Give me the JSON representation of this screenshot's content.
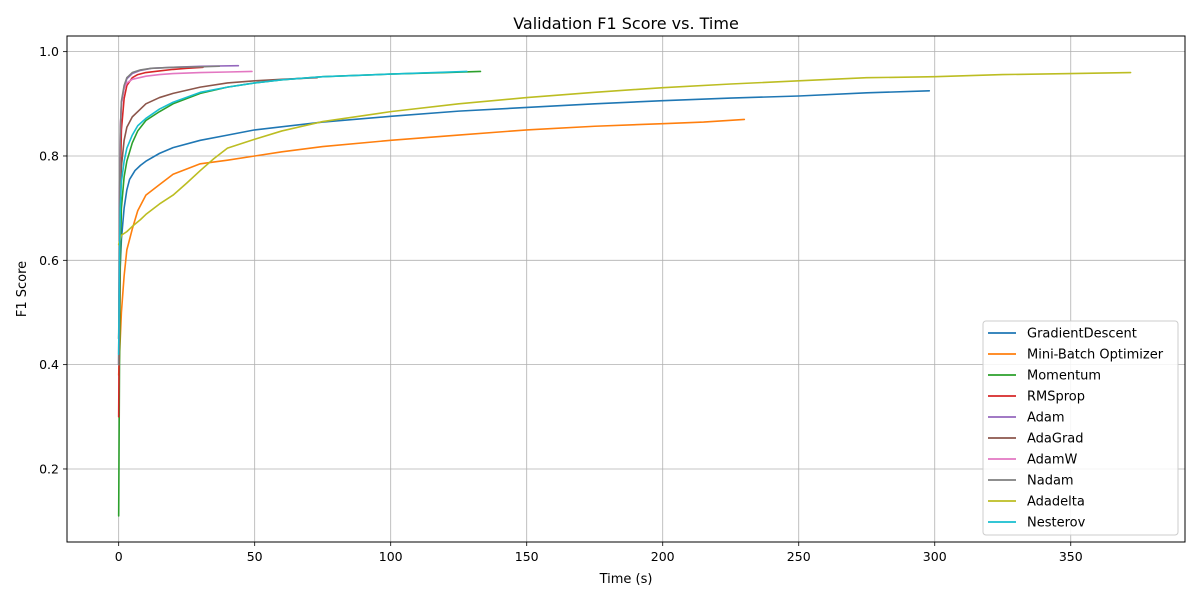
{
  "chart_data": {
    "type": "line",
    "title": "Validation F1 Score vs. Time",
    "xlabel": "Time (s)",
    "ylabel": "F1 Score",
    "xlim": [
      -19,
      392
    ],
    "ylim": [
      0.06,
      1.03
    ],
    "xticks": [
      0,
      50,
      100,
      150,
      200,
      250,
      300,
      350
    ],
    "yticks": [
      0.2,
      0.4,
      0.6,
      0.8,
      1.0
    ],
    "ytick_labels": [
      "0.2",
      "0.4",
      "0.6",
      "0.8",
      "1.0"
    ],
    "grid": true,
    "legend_position": "lower-right",
    "series": [
      {
        "name": "GradientDescent",
        "color": "#1f77b4",
        "points": [
          [
            0,
            0.45
          ],
          [
            0.5,
            0.58
          ],
          [
            1,
            0.64
          ],
          [
            2,
            0.7
          ],
          [
            3,
            0.735
          ],
          [
            4,
            0.755
          ],
          [
            6,
            0.772
          ],
          [
            8,
            0.782
          ],
          [
            10,
            0.79
          ],
          [
            15,
            0.805
          ],
          [
            20,
            0.816
          ],
          [
            30,
            0.83
          ],
          [
            40,
            0.84
          ],
          [
            50,
            0.85
          ],
          [
            75,
            0.865
          ],
          [
            100,
            0.876
          ],
          [
            125,
            0.886
          ],
          [
            150,
            0.893
          ],
          [
            175,
            0.9
          ],
          [
            200,
            0.906
          ],
          [
            225,
            0.911
          ],
          [
            250,
            0.915
          ],
          [
            275,
            0.921
          ],
          [
            298,
            0.925
          ]
        ]
      },
      {
        "name": "Mini-Batch Optimizer",
        "color": "#ff7f0e",
        "points": [
          [
            0,
            0.38
          ],
          [
            1,
            0.5
          ],
          [
            2,
            0.57
          ],
          [
            3,
            0.62
          ],
          [
            5,
            0.66
          ],
          [
            7,
            0.695
          ],
          [
            10,
            0.725
          ],
          [
            15,
            0.745
          ],
          [
            20,
            0.765
          ],
          [
            25,
            0.775
          ],
          [
            30,
            0.785
          ],
          [
            40,
            0.792
          ],
          [
            50,
            0.8
          ],
          [
            60,
            0.808
          ],
          [
            75,
            0.818
          ],
          [
            100,
            0.83
          ],
          [
            125,
            0.84
          ],
          [
            150,
            0.85
          ],
          [
            175,
            0.857
          ],
          [
            200,
            0.862
          ],
          [
            215,
            0.865
          ],
          [
            230,
            0.87
          ]
        ]
      },
      {
        "name": "Momentum",
        "color": "#2ca02c",
        "points": [
          [
            0,
            0.11
          ],
          [
            0.3,
            0.4
          ],
          [
            0.6,
            0.6
          ],
          [
            1,
            0.7
          ],
          [
            2,
            0.76
          ],
          [
            3,
            0.79
          ],
          [
            5,
            0.825
          ],
          [
            7,
            0.848
          ],
          [
            10,
            0.868
          ],
          [
            15,
            0.885
          ],
          [
            20,
            0.9
          ],
          [
            30,
            0.92
          ],
          [
            40,
            0.932
          ],
          [
            50,
            0.94
          ],
          [
            60,
            0.946
          ],
          [
            75,
            0.952
          ],
          [
            100,
            0.957
          ],
          [
            120,
            0.96
          ],
          [
            133,
            0.962
          ]
        ]
      },
      {
        "name": "RMSprop",
        "color": "#d62728",
        "points": [
          [
            0,
            0.3
          ],
          [
            0.3,
            0.55
          ],
          [
            0.6,
            0.75
          ],
          [
            1,
            0.85
          ],
          [
            2,
            0.91
          ],
          [
            3,
            0.935
          ],
          [
            5,
            0.95
          ],
          [
            7,
            0.956
          ],
          [
            10,
            0.96
          ],
          [
            15,
            0.963
          ],
          [
            20,
            0.966
          ],
          [
            25,
            0.968
          ],
          [
            31,
            0.97
          ]
        ]
      },
      {
        "name": "Adam",
        "color": "#9467bd",
        "points": [
          [
            0,
            0.4
          ],
          [
            0.3,
            0.7
          ],
          [
            0.6,
            0.85
          ],
          [
            1,
            0.9
          ],
          [
            2,
            0.93
          ],
          [
            3,
            0.948
          ],
          [
            5,
            0.958
          ],
          [
            8,
            0.964
          ],
          [
            12,
            0.968
          ],
          [
            20,
            0.97
          ],
          [
            30,
            0.972
          ],
          [
            44,
            0.973
          ]
        ]
      },
      {
        "name": "AdaGrad",
        "color": "#8c564b",
        "points": [
          [
            0,
            0.45
          ],
          [
            0.5,
            0.7
          ],
          [
            1,
            0.78
          ],
          [
            2,
            0.83
          ],
          [
            3,
            0.855
          ],
          [
            5,
            0.875
          ],
          [
            8,
            0.89
          ],
          [
            10,
            0.9
          ],
          [
            15,
            0.912
          ],
          [
            20,
            0.92
          ],
          [
            30,
            0.932
          ],
          [
            40,
            0.94
          ],
          [
            50,
            0.944
          ],
          [
            60,
            0.947
          ],
          [
            73,
            0.95
          ]
        ]
      },
      {
        "name": "AdamW",
        "color": "#e377c2",
        "points": [
          [
            0,
            0.4
          ],
          [
            0.3,
            0.7
          ],
          [
            0.6,
            0.85
          ],
          [
            1,
            0.9
          ],
          [
            2,
            0.93
          ],
          [
            3,
            0.94
          ],
          [
            5,
            0.947
          ],
          [
            10,
            0.953
          ],
          [
            15,
            0.956
          ],
          [
            20,
            0.958
          ],
          [
            30,
            0.96
          ],
          [
            40,
            0.961
          ],
          [
            49,
            0.962
          ]
        ]
      },
      {
        "name": "Nadam",
        "color": "#7f7f7f",
        "points": [
          [
            0,
            0.4
          ],
          [
            0.3,
            0.7
          ],
          [
            0.6,
            0.85
          ],
          [
            1,
            0.905
          ],
          [
            2,
            0.935
          ],
          [
            3,
            0.95
          ],
          [
            5,
            0.96
          ],
          [
            8,
            0.965
          ],
          [
            12,
            0.968
          ],
          [
            20,
            0.97
          ],
          [
            30,
            0.971
          ],
          [
            37,
            0.972
          ]
        ]
      },
      {
        "name": "Adadelta",
        "color": "#bcbd22",
        "points": [
          [
            0,
            0.63
          ],
          [
            1,
            0.648
          ],
          [
            3,
            0.655
          ],
          [
            5,
            0.665
          ],
          [
            8,
            0.678
          ],
          [
            10,
            0.688
          ],
          [
            15,
            0.708
          ],
          [
            20,
            0.725
          ],
          [
            25,
            0.748
          ],
          [
            30,
            0.772
          ],
          [
            35,
            0.795
          ],
          [
            40,
            0.815
          ],
          [
            50,
            0.832
          ],
          [
            60,
            0.848
          ],
          [
            75,
            0.866
          ],
          [
            100,
            0.885
          ],
          [
            125,
            0.9
          ],
          [
            150,
            0.912
          ],
          [
            175,
            0.922
          ],
          [
            200,
            0.931
          ],
          [
            225,
            0.938
          ],
          [
            250,
            0.944
          ],
          [
            275,
            0.95
          ],
          [
            300,
            0.952
          ],
          [
            325,
            0.956
          ],
          [
            350,
            0.958
          ],
          [
            372,
            0.96
          ]
        ]
      },
      {
        "name": "Nesterov",
        "color": "#17becf",
        "points": [
          [
            0,
            0.42
          ],
          [
            0.3,
            0.6
          ],
          [
            0.6,
            0.7
          ],
          [
            1,
            0.75
          ],
          [
            2,
            0.79
          ],
          [
            3,
            0.815
          ],
          [
            5,
            0.84
          ],
          [
            7,
            0.858
          ],
          [
            10,
            0.872
          ],
          [
            15,
            0.89
          ],
          [
            20,
            0.903
          ],
          [
            30,
            0.922
          ],
          [
            40,
            0.932
          ],
          [
            50,
            0.94
          ],
          [
            60,
            0.946
          ],
          [
            75,
            0.952
          ],
          [
            100,
            0.957
          ],
          [
            128,
            0.962
          ]
        ]
      }
    ]
  }
}
